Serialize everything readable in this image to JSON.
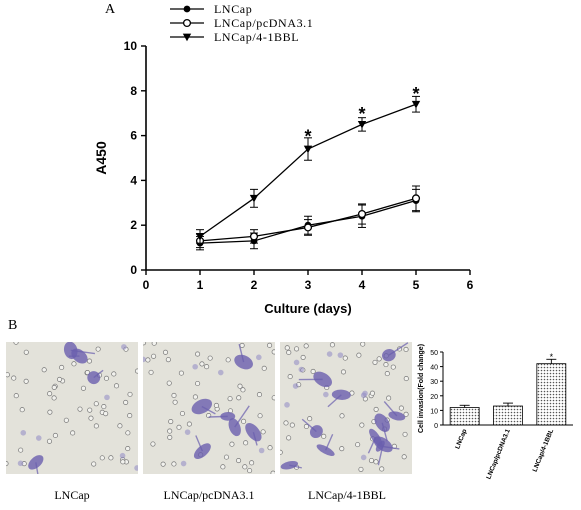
{
  "panels": {
    "a_label": "A",
    "b_label": "B"
  },
  "chart_data": [
    {
      "type": "line",
      "xlabel": "Culture (days)",
      "ylabel": "A450",
      "xlim": [
        0,
        6
      ],
      "ylim": [
        0,
        10
      ],
      "x_ticks": [
        "0",
        "1",
        "2",
        "3",
        "4",
        "5",
        "6"
      ],
      "y_ticks": [
        "0",
        "2",
        "4",
        "6",
        "8",
        "10"
      ],
      "legend_placement": "top",
      "series": [
        {
          "name": "LNCap",
          "marker": "filled-circle",
          "x": [
            1,
            2,
            3,
            4,
            5
          ],
          "values": [
            1.2,
            1.3,
            2.0,
            2.4,
            3.1
          ],
          "error": [
            0.3,
            0.35,
            0.4,
            0.5,
            0.5
          ]
        },
        {
          "name": "LNCap/pcDNA3.1",
          "marker": "open-circle",
          "x": [
            1,
            2,
            3,
            4,
            5
          ],
          "values": [
            1.3,
            1.5,
            1.9,
            2.5,
            3.2
          ],
          "error": [
            0.3,
            0.3,
            0.35,
            0.45,
            0.55
          ]
        },
        {
          "name": "LNCap/4-1BBL",
          "marker": "filled-triangle-down",
          "x": [
            1,
            2,
            3,
            4,
            5
          ],
          "values": [
            1.5,
            3.2,
            5.4,
            6.5,
            7.4
          ],
          "error": [
            0.3,
            0.4,
            0.5,
            0.3,
            0.35
          ]
        }
      ],
      "annotations": [
        {
          "text": "*",
          "x": 3,
          "y": 6.1
        },
        {
          "text": "*",
          "x": 4,
          "y": 7.1
        },
        {
          "text": "*",
          "x": 5,
          "y": 8.0
        }
      ]
    },
    {
      "type": "bar",
      "categories": [
        "LNCap",
        "LNCap/pcDNA3.1",
        "LNCap/4-1BBL"
      ],
      "values": [
        12,
        13,
        42
      ],
      "error": [
        1.5,
        2,
        3
      ],
      "ylabel": "Cell invasion(Fold change)",
      "ylim": [
        0,
        50
      ],
      "y_ticks": [
        "0",
        "10",
        "20",
        "30",
        "40",
        "50"
      ],
      "annotations": [
        {
          "text": "*",
          "category": "LNCap/4-1BBL",
          "y": 48
        }
      ]
    }
  ],
  "micrographs": [
    {
      "label": "LNCap"
    },
    {
      "label": "LNCap/pcDNA3.1"
    },
    {
      "label": "LNCap/4-1BBL"
    }
  ],
  "colors": {
    "ink": "#000000",
    "stain": "#6a5fae",
    "field": "#e3e2da"
  }
}
